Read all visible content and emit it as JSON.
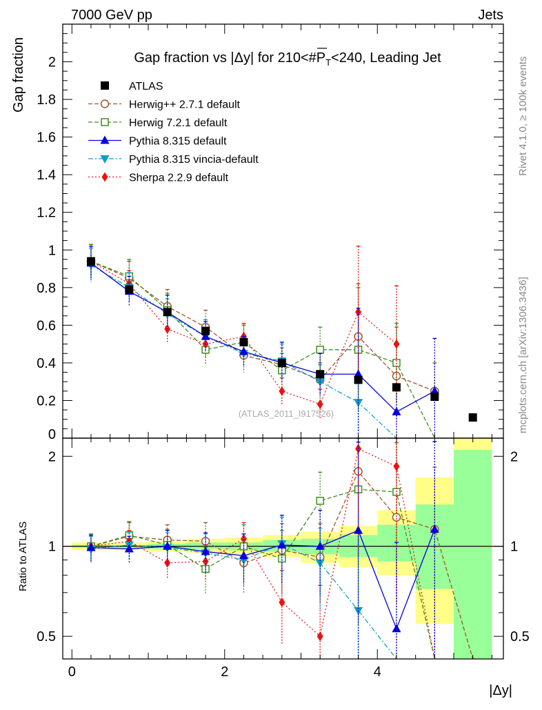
{
  "header": {
    "left": "7000 GeV pp",
    "right": "Jets",
    "side_top": "Rivet 4.1.0, ≥ 100k events",
    "side_bottom": "mcplots.cern.ch [arXiv:1306.3436]",
    "watermark": "(ATLAS_2011_I917526)"
  },
  "chart_data": [
    {
      "type": "scatter",
      "title": "Gap fraction vs |Δy| for 210<#P̅T<240, Leading Jet",
      "title_parts": {
        "pre": "Gap fraction vs |Δy| for 210<#",
        "p": "P",
        "t": "T",
        "post": "<240, Leading Jet"
      },
      "ylabel": "Gap fraction",
      "xlabel": "|Δy|",
      "xlim": [
        -0.12,
        5.65
      ],
      "ylim": [
        0,
        2.2
      ],
      "yticks": [
        0.2,
        0.4,
        0.6,
        0.8,
        1,
        1.2,
        1.4,
        1.6,
        1.8,
        2
      ],
      "yticks_shown": [
        "0.2",
        "0.4",
        "0.6",
        "0.8",
        "1",
        "1.2",
        "1.4",
        "1.6",
        "1.8",
        "2"
      ],
      "legend": [
        "ATLAS",
        "Herwig++ 2.7.1 default",
        "Herwig 7.2.1 default",
        "Pythia 8.315 default",
        "Pythia 8.315 vincia-default",
        "Sherpa 2.2.9 default"
      ],
      "x": [
        0.25,
        0.75,
        1.25,
        1.75,
        2.25,
        2.75,
        3.25,
        3.75,
        4.25,
        4.75,
        5.25
      ],
      "series": [
        {
          "name": "ATLAS",
          "color": "#000000",
          "marker": "square-filled",
          "line": "none",
          "values": [
            0.94,
            0.79,
            0.67,
            0.57,
            0.51,
            0.4,
            0.34,
            0.31,
            0.27,
            0.22,
            0.11
          ],
          "err": [
            0.01,
            0.01,
            0.01,
            0.01,
            0.01,
            0.01,
            0.01,
            0.01,
            0.01,
            0.01,
            0.01
          ]
        },
        {
          "name": "Herwig++ 2.7.1 default",
          "color": "#a0522d",
          "marker": "circle-open",
          "line": "dashed",
          "values": [
            0.94,
            0.85,
            0.7,
            0.59,
            0.44,
            0.39,
            0.31,
            0.54,
            0.33,
            0.25
          ],
          "err": [
            0.09,
            0.09,
            0.09,
            0.09,
            0.09,
            0.09,
            0.09,
            0.28,
            0.26,
            0.15
          ]
        },
        {
          "name": "Herwig 7.2.1 default",
          "color": "#3d8e1d",
          "marker": "square-open",
          "line": "dashed",
          "values": [
            0.94,
            0.86,
            0.68,
            0.47,
            0.51,
            0.36,
            0.47,
            0.47,
            0.4,
            0
          ],
          "err": [
            0.09,
            0.09,
            0.09,
            0.08,
            0.09,
            0.09,
            0.12,
            0.33,
            0.21,
            0
          ]
        },
        {
          "name": "Pythia 8.315 default",
          "color": "#0000dd",
          "marker": "triangle-up",
          "line": "solid",
          "values": [
            0.93,
            0.78,
            0.67,
            0.54,
            0.46,
            0.4,
            0.34,
            0.34,
            0.14,
            0.25
          ],
          "err": [
            0.09,
            0.08,
            0.09,
            0.08,
            0.08,
            0.11,
            0.11,
            0.35,
            0.13,
            0.28
          ]
        },
        {
          "name": "Pythia 8.315 vincia-default",
          "color": "#0da0c0",
          "marker": "triangle-down",
          "line": "dashdot",
          "values": [
            0.92,
            0.8,
            0.66,
            0.54,
            0.45,
            0.41,
            0.3,
            0.19,
            0.0
          ],
          "err": [
            0.09,
            0.08,
            0.08,
            0.09,
            0.08,
            0.09,
            0.09,
            0.15,
            0.0
          ]
        },
        {
          "name": "Sherpa 2.2.9 default",
          "color": "#ee1111",
          "marker": "diamond",
          "line": "dotted",
          "values": [
            0.94,
            0.82,
            0.58,
            0.5,
            0.54,
            0.25,
            0.18,
            0.67,
            0.5
          ],
          "err": [
            0.07,
            0.07,
            0.07,
            0.07,
            0.07,
            0.07,
            0.08,
            0.35,
            0.31
          ]
        }
      ]
    },
    {
      "type": "scatter",
      "ylabel": "Ratio to ATLAS",
      "xlabel": "|Δy|",
      "xlim": [
        -0.12,
        5.65
      ],
      "ylim": [
        0.42,
        2.3
      ],
      "yscale": "log",
      "yticks_shown": [
        "0.5",
        "1",
        "2"
      ],
      "yticks": [
        0.5,
        1,
        2
      ],
      "xticks_shown": [
        "0",
        "2",
        "4"
      ],
      "xticks": [
        0,
        2,
        4
      ],
      "x": [
        0.25,
        0.75,
        1.25,
        1.75,
        2.25,
        2.75,
        3.25,
        3.75,
        4.25,
        4.75
      ],
      "x_edges": [
        0,
        0.5,
        1,
        1.5,
        2,
        2.5,
        3,
        3.5,
        4,
        4.5,
        5,
        5.5
      ],
      "band_yellow": [
        [
          0.97,
          1.03
        ],
        [
          0.97,
          1.03
        ],
        [
          0.96,
          1.04
        ],
        [
          0.95,
          1.06
        ],
        [
          0.94,
          1.07
        ],
        [
          0.92,
          1.09
        ],
        [
          0.88,
          1.12
        ],
        [
          0.85,
          1.17
        ],
        [
          0.8,
          1.32
        ],
        [
          0.55,
          1.7
        ],
        [
          0.3,
          2.6
        ]
      ],
      "band_green": [
        [
          0.99,
          1.01
        ],
        [
          0.99,
          1.01
        ],
        [
          0.98,
          1.02
        ],
        [
          0.98,
          1.03
        ],
        [
          0.97,
          1.03
        ],
        [
          0.96,
          1.05
        ],
        [
          0.94,
          1.06
        ],
        [
          0.92,
          1.09
        ],
        [
          0.89,
          1.18
        ],
        [
          0.72,
          1.38
        ],
        [
          0.3,
          2.1
        ]
      ],
      "series": [
        {
          "name": "Herwig++ 2.7.1 default",
          "values": [
            1.0,
            1.08,
            1.05,
            1.04,
            0.88,
            0.97,
            0.92,
            1.78,
            1.25,
            1.14
          ],
          "err": [
            0.1,
            0.12,
            0.13,
            0.16,
            0.18,
            0.22,
            0.27,
            0.9,
            0.97,
            0.7
          ],
          "extend_to": 0.3
        },
        {
          "name": "Herwig 7.2.1 default",
          "values": [
            1.0,
            1.09,
            1.01,
            0.84,
            1.0,
            0.91,
            1.42,
            1.55,
            1.52
          ],
          "err": [
            0.1,
            0.12,
            0.13,
            0.15,
            0.18,
            0.22,
            0.35,
            1.0,
            0.8
          ],
          "extend_to": 0.3
        },
        {
          "name": "Pythia 8.315 default",
          "values": [
            0.99,
            0.98,
            1.0,
            0.96,
            0.93,
            1.01,
            1.0,
            1.13,
            0.53,
            1.14
          ],
          "err": [
            0.1,
            0.1,
            0.13,
            0.15,
            0.17,
            0.26,
            0.32,
            1.1,
            0.5,
            1.1
          ]
        },
        {
          "name": "Pythia 8.315 vincia-default",
          "values": [
            0.98,
            1.01,
            0.99,
            0.95,
            0.9,
            1.02,
            0.88,
            0.61
          ],
          "err": [
            0.1,
            0.1,
            0.12,
            0.15,
            0.17,
            0.23,
            0.27,
            0.5
          ],
          "extend_to": 0.3
        },
        {
          "name": "Sherpa 2.2.9 default",
          "values": [
            1.0,
            1.04,
            0.88,
            0.89,
            1.06,
            0.65,
            0.5,
            2.12,
            1.85
          ],
          "err": [
            0.08,
            0.09,
            0.1,
            0.12,
            0.14,
            0.18,
            0.24,
            1.2,
            1.2
          ],
          "extend_to": 0.3
        }
      ]
    }
  ]
}
